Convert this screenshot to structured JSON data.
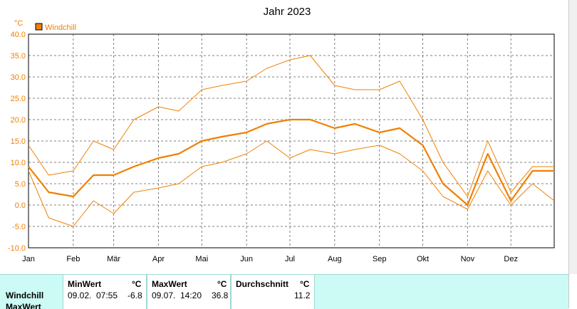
{
  "chart_data": {
    "type": "line",
    "title": "Jahr 2023",
    "ylabel": "°C",
    "ylim": [
      -10,
      40
    ],
    "yticks": [
      "-10.0",
      "-5.0",
      "0.0",
      "5.0",
      "10.0",
      "15.0",
      "20.0",
      "25.0",
      "30.0",
      "35.0",
      "40.0"
    ],
    "xticks": [
      "Jan",
      "Feb",
      "Mär",
      "Apr",
      "Mai",
      "Jun",
      "Jul",
      "Aug",
      "Sep",
      "Okt",
      "Nov",
      "Dez"
    ],
    "x_days": [
      1,
      15,
      32,
      46,
      60,
      74,
      91,
      105,
      121,
      135,
      152,
      166,
      182,
      196,
      213,
      227,
      244,
      258,
      274,
      288,
      305,
      319,
      335,
      350,
      365
    ],
    "legend": {
      "position": "top-left",
      "entries": [
        "Windchill"
      ]
    },
    "grid": true,
    "colors": {
      "series": "#f08000",
      "grid": "#808080",
      "axis": "#000000",
      "label": "#f08000"
    },
    "series": [
      {
        "name": "Windchill",
        "role": "average",
        "values": [
          9,
          3,
          2,
          7,
          7,
          9,
          11,
          12,
          15,
          16,
          17,
          19,
          20,
          20,
          18,
          19,
          17,
          18,
          14,
          5,
          0,
          12,
          1,
          8,
          8
        ]
      },
      {
        "role": "max",
        "values": [
          14,
          7,
          8,
          15,
          13,
          20,
          23,
          22,
          27,
          28,
          29,
          32,
          34,
          35,
          28,
          27,
          27,
          29,
          20,
          10,
          2,
          15,
          3,
          9,
          9
        ]
      },
      {
        "role": "min",
        "values": [
          8,
          -3,
          -5,
          1,
          -2,
          3,
          4,
          5,
          9,
          10,
          12,
          15,
          11,
          13,
          12,
          13,
          14,
          12,
          8,
          2,
          -1,
          8,
          0,
          5,
          1
        ]
      }
    ]
  },
  "stats": {
    "row_labels": [
      "Windchill",
      "MaxWert"
    ],
    "min": {
      "header": "MinWert",
      "unit": "°C",
      "date": "09.02.",
      "time": "07:55",
      "value": "-6.8"
    },
    "max": {
      "header": "MaxWert",
      "unit": "°C",
      "date": "09.07.",
      "time": "14:20",
      "value": "36.8"
    },
    "avg": {
      "header": "Durchschnitt",
      "unit": "°C",
      "value": "11.2"
    }
  }
}
